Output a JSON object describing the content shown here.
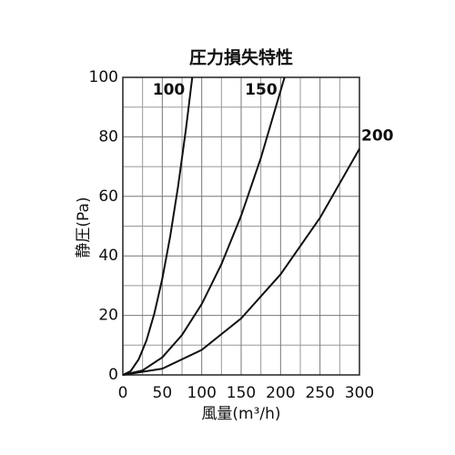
{
  "chart_data": {
    "type": "line",
    "title": "圧力損失特性",
    "x_label": "風量(m³/h)",
    "y_label": "静圧(Pa)",
    "xlim": [
      0,
      300
    ],
    "xticks": [
      0,
      50,
      100,
      150,
      200,
      250,
      300
    ],
    "ylim": [
      0,
      100
    ],
    "yticks": [
      0,
      20,
      40,
      60,
      80,
      100
    ],
    "grid": true,
    "series": [
      {
        "name": "100",
        "color": "#111111",
        "x": [
          0,
          10,
          20,
          30,
          40,
          50,
          60,
          70,
          80,
          88
        ],
        "values": [
          0,
          1.3,
          5.2,
          11.6,
          20.7,
          32.3,
          46.5,
          63.3,
          82.6,
          100
        ]
      },
      {
        "name": "150",
        "color": "#111111",
        "x": [
          0,
          25,
          50,
          75,
          100,
          125,
          150,
          175,
          205
        ],
        "values": [
          0,
          1.5,
          5.9,
          13.4,
          23.8,
          37.2,
          53.5,
          72.9,
          100
        ]
      },
      {
        "name": "200",
        "color": "#111111",
        "x": [
          0,
          50,
          100,
          150,
          200,
          250,
          300
        ],
        "values": [
          0,
          2.1,
          8.4,
          19.0,
          33.8,
          52.8,
          76
        ]
      }
    ]
  }
}
